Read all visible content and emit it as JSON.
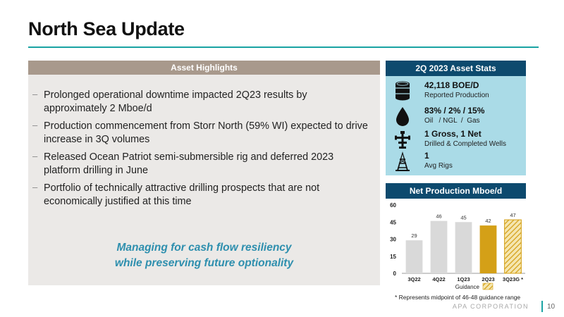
{
  "title": "North Sea Update",
  "highlights": {
    "header": "Asset Highlights",
    "bullets": [
      "Prolonged operational downtime impacted 2Q23 results by approximately 2 Mboe/d",
      "Production commencement from Storr North (59% WI) expected to drive increase in 3Q volumes",
      "Released Ocean Patriot semi-submersible rig and deferred 2023 platform drilling in June",
      "Portfolio of technically attractive drilling prospects that are not economically justified at this time"
    ],
    "tagline_line1": "Managing for cash flow resiliency",
    "tagline_line2": "while preserving future optionality"
  },
  "stats": {
    "header": "2Q 2023 Asset Stats",
    "items": [
      {
        "value": "42,118 BOE/D",
        "label": "Reported Production",
        "icon": "oil-barrel-icon"
      },
      {
        "value": "83% / 2% / 15%",
        "label": "Oil   / NGL  /  Gas",
        "icon": "oil-drop-icon"
      },
      {
        "value": "1 Gross, 1 Net",
        "label": "Drilled & Completed Wells",
        "icon": "wellhead-icon"
      },
      {
        "value": "1",
        "label": "Avg Rigs",
        "icon": "drilling-rig-icon"
      }
    ]
  },
  "production": {
    "header": "Net Production Mboe/d",
    "legend_label": "Guidance",
    "footnote": "* Represents midpoint of 46-48 guidance range"
  },
  "chart_data": {
    "type": "bar",
    "categories": [
      "3Q22",
      "4Q22",
      "1Q23",
      "2Q23",
      "3Q23G *"
    ],
    "values": [
      29,
      46,
      45,
      42,
      47
    ],
    "data_labels": [
      "29",
      "46",
      "45",
      "42",
      "47"
    ],
    "ylim": [
      0,
      60
    ],
    "yticks": [
      "0",
      "15",
      "30",
      "45",
      "60"
    ],
    "ytick_values": [
      0,
      15,
      30,
      45,
      60
    ],
    "colors": [
      "#d9d9d9",
      "#d9d9d9",
      "#d9d9d9",
      "#d4a017",
      "hatch"
    ],
    "grid": false
  },
  "footer": {
    "company": "APA CORPORATION",
    "page": "10"
  },
  "colors": {
    "accent_teal": "#1aa3a3",
    "navy": "#0d4a6e",
    "light_blue": "#aadbe7",
    "taupe": "#a8998c",
    "gold": "#d4a017"
  }
}
